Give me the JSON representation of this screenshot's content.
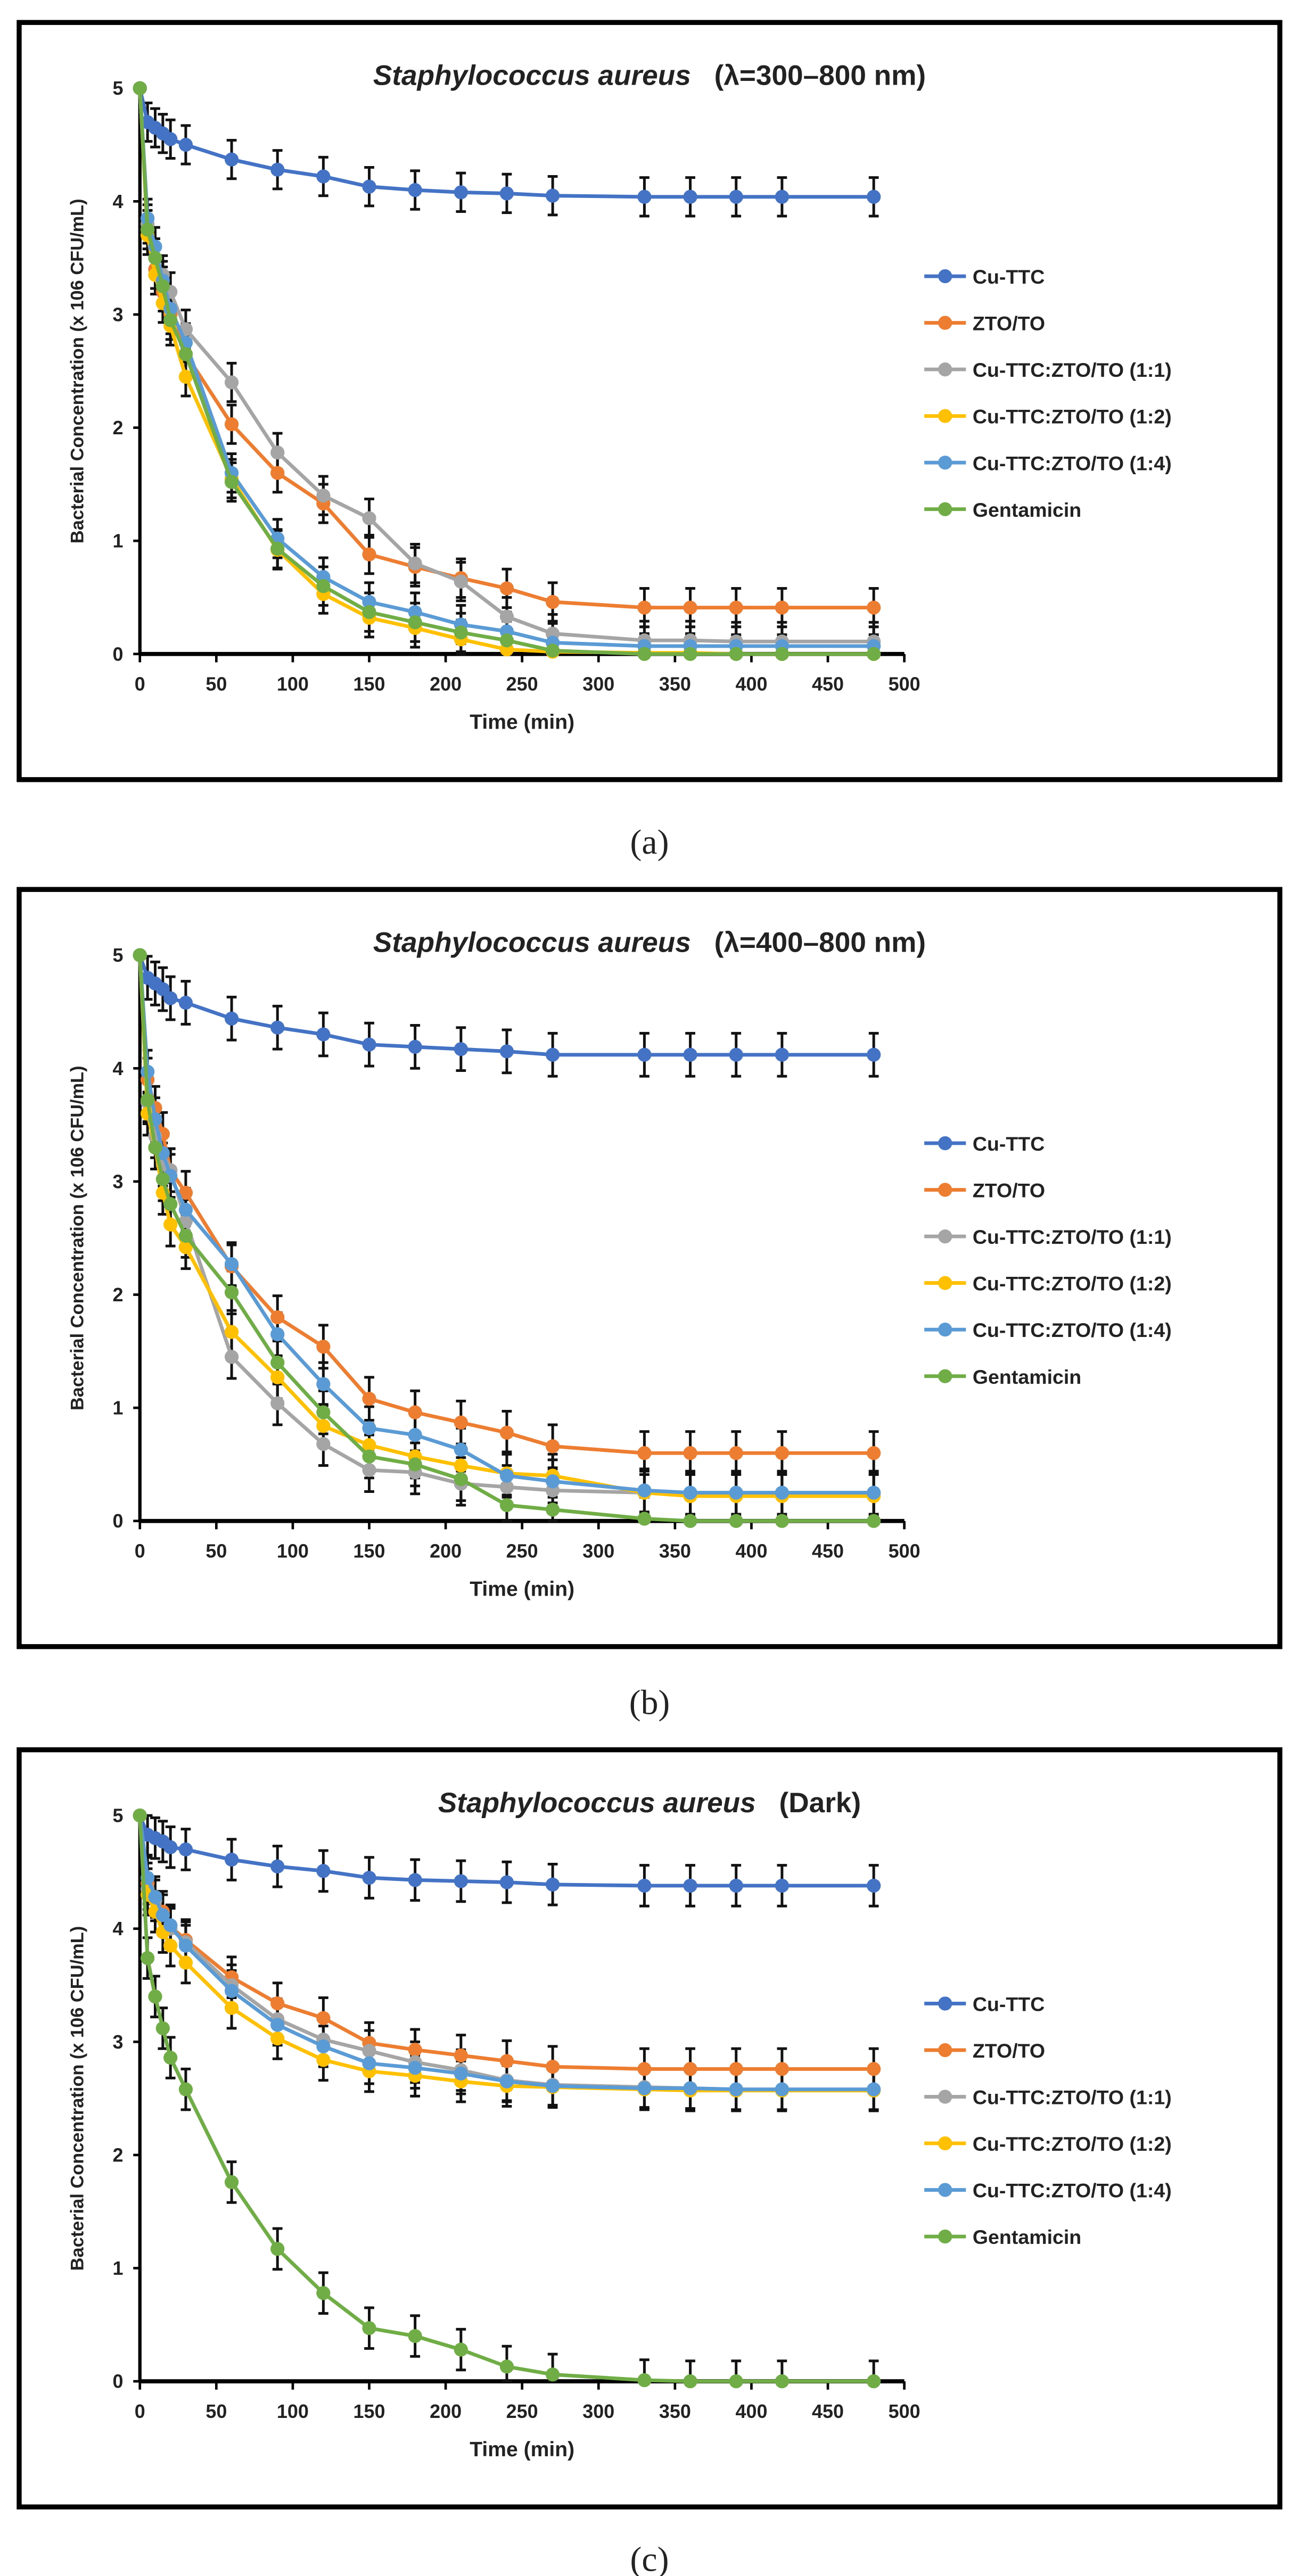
{
  "colors": {
    "Cu-TTC": "#4472C4",
    "ZTO/TO": "#ED7D31",
    "Cu-TTC:ZTO/TO (1:1)": "#A5A5A5",
    "Cu-TTC:ZTO/TO (1:2)": "#FFC000",
    "Cu-TTC:ZTO/TO (1:4)": "#5B9BD5",
    "Gentamicin": "#70AD47"
  },
  "chart_data": [
    {
      "type": "line",
      "caption": "(a)",
      "title_species": "Staphylococcus aureus",
      "title_condition": "(λ=300–800 nm)",
      "xlabel": "Time (min)",
      "ylabel": "Bacterial Concentration (x 106 CFU/mL)",
      "xlim": [
        0,
        500
      ],
      "ylim": [
        0,
        5
      ],
      "xticks": [
        "0",
        "50",
        "100",
        "150",
        "200",
        "250",
        "300",
        "350",
        "400",
        "450",
        "500"
      ],
      "yticks": [
        "0",
        "1",
        "2",
        "3",
        "4",
        "5"
      ],
      "legend_position": "right",
      "grid": false,
      "x": [
        0,
        5,
        10,
        15,
        20,
        30,
        60,
        90,
        120,
        150,
        180,
        210,
        240,
        270,
        330,
        360,
        390,
        420,
        480
      ],
      "error": 0.17,
      "series": [
        {
          "name": "Cu-TTC",
          "values": [
            5,
            4.7,
            4.65,
            4.6,
            4.55,
            4.5,
            4.37,
            4.28,
            4.22,
            4.13,
            4.1,
            4.08,
            4.07,
            4.05,
            4.04,
            4.04,
            4.04,
            4.04,
            4.04
          ]
        },
        {
          "name": "ZTO/TO",
          "values": [
            5,
            3.75,
            3.4,
            3.2,
            3.0,
            2.65,
            2.03,
            1.6,
            1.33,
            0.88,
            0.77,
            0.67,
            0.58,
            0.46,
            0.41,
            0.41,
            0.41,
            0.41,
            0.41
          ]
        },
        {
          "name": "Cu-TTC:ZTO/TO (1:1)",
          "values": [
            5,
            3.8,
            3.5,
            3.35,
            3.2,
            2.87,
            2.4,
            1.78,
            1.4,
            1.2,
            0.8,
            0.64,
            0.33,
            0.18,
            0.12,
            0.12,
            0.11,
            0.11,
            0.11
          ]
        },
        {
          "name": "Cu-TTC:ZTO/TO (1:2)",
          "values": [
            5,
            3.7,
            3.35,
            3.1,
            2.9,
            2.45,
            1.55,
            0.92,
            0.53,
            0.32,
            0.23,
            0.13,
            0.04,
            0.02,
            0.01,
            0.01,
            0,
            0,
            0
          ]
        },
        {
          "name": "Cu-TTC:ZTO/TO (1:4)",
          "values": [
            5,
            3.85,
            3.6,
            3.3,
            3.05,
            2.75,
            1.6,
            1.02,
            0.68,
            0.46,
            0.37,
            0.26,
            0.2,
            0.1,
            0.07,
            0.07,
            0.07,
            0.07,
            0.07
          ]
        },
        {
          "name": "Gentamicin",
          "values": [
            5,
            3.75,
            3.5,
            3.25,
            2.95,
            2.65,
            1.52,
            0.93,
            0.6,
            0.37,
            0.28,
            0.19,
            0.12,
            0.03,
            0,
            0,
            0,
            0,
            0
          ]
        }
      ]
    },
    {
      "type": "line",
      "caption": "(b)",
      "title_species": "Staphylococcus aureus",
      "title_condition": "(λ=400–800 nm)",
      "xlabel": "Time (min)",
      "ylabel": "Bacterial Concentration (x 106 CFU/mL)",
      "xlim": [
        0,
        500
      ],
      "ylim": [
        0,
        5
      ],
      "xticks": [
        "0",
        "50",
        "100",
        "150",
        "200",
        "250",
        "300",
        "350",
        "400",
        "450",
        "500"
      ],
      "yticks": [
        "0",
        "1",
        "2",
        "3",
        "4",
        "5"
      ],
      "legend_position": "right",
      "grid": false,
      "x": [
        0,
        5,
        10,
        15,
        20,
        30,
        60,
        90,
        120,
        150,
        180,
        210,
        240,
        270,
        330,
        360,
        390,
        420,
        480
      ],
      "error": 0.19,
      "series": [
        {
          "name": "Cu-TTC",
          "values": [
            5,
            4.8,
            4.75,
            4.7,
            4.62,
            4.58,
            4.44,
            4.36,
            4.3,
            4.21,
            4.19,
            4.17,
            4.15,
            4.12,
            4.12,
            4.12,
            4.12,
            4.12,
            4.12
          ]
        },
        {
          "name": "ZTO/TO",
          "values": [
            5,
            3.9,
            3.65,
            3.42,
            3.1,
            2.9,
            2.25,
            1.8,
            1.54,
            1.08,
            0.96,
            0.87,
            0.78,
            0.66,
            0.6,
            0.6,
            0.6,
            0.6,
            0.6
          ]
        },
        {
          "name": "Cu-TTC:ZTO/TO (1:1)",
          "values": [
            5,
            3.7,
            3.4,
            3.15,
            3.1,
            2.65,
            1.45,
            1.04,
            0.68,
            0.45,
            0.43,
            0.33,
            0.3,
            0.27,
            0.25,
            0.24,
            0.24,
            0.24,
            0.24
          ]
        },
        {
          "name": "Cu-TTC:ZTO/TO (1:2)",
          "values": [
            5,
            3.6,
            3.3,
            2.9,
            2.62,
            2.42,
            1.67,
            1.27,
            0.84,
            0.67,
            0.57,
            0.49,
            0.42,
            0.4,
            0.25,
            0.22,
            0.22,
            0.22,
            0.22
          ]
        },
        {
          "name": "Cu-TTC:ZTO/TO (1:4)",
          "values": [
            5,
            3.97,
            3.55,
            3.25,
            3.05,
            2.75,
            2.27,
            1.65,
            1.21,
            0.82,
            0.76,
            0.63,
            0.4,
            0.35,
            0.27,
            0.25,
            0.25,
            0.25,
            0.25
          ]
        },
        {
          "name": "Gentamicin",
          "values": [
            5,
            3.72,
            3.3,
            3.02,
            2.8,
            2.52,
            2.02,
            1.4,
            0.96,
            0.57,
            0.5,
            0.37,
            0.14,
            0.1,
            0.02,
            0,
            0,
            0,
            0
          ]
        }
      ]
    },
    {
      "type": "line",
      "caption": "(c)",
      "title_species": "Staphylococcus aureus",
      "title_condition": "(Dark)",
      "xlabel": "Time (min)",
      "ylabel": "Bacterial Concentration (x 106 CFU/mL)",
      "xlim": [
        0,
        500
      ],
      "ylim": [
        0,
        5
      ],
      "xticks": [
        "0",
        "50",
        "100",
        "150",
        "200",
        "250",
        "300",
        "350",
        "400",
        "450",
        "500"
      ],
      "yticks": [
        "0",
        "1",
        "2",
        "3",
        "4",
        "5"
      ],
      "legend_position": "right",
      "grid": false,
      "x": [
        0,
        5,
        10,
        15,
        20,
        30,
        60,
        90,
        120,
        150,
        180,
        210,
        240,
        270,
        330,
        360,
        390,
        420,
        480
      ],
      "error": 0.18,
      "series": [
        {
          "name": "Cu-TTC",
          "values": [
            5,
            4.83,
            4.8,
            4.77,
            4.72,
            4.7,
            4.61,
            4.55,
            4.51,
            4.45,
            4.43,
            4.42,
            4.41,
            4.39,
            4.38,
            4.38,
            4.38,
            4.38,
            4.38
          ]
        },
        {
          "name": "ZTO/TO",
          "values": [
            5,
            4.4,
            4.28,
            4.15,
            4.02,
            3.9,
            3.57,
            3.34,
            3.21,
            2.99,
            2.93,
            2.88,
            2.83,
            2.78,
            2.76,
            2.76,
            2.76,
            2.76,
            2.76
          ]
        },
        {
          "name": "Cu-TTC:ZTO/TO (1:1)",
          "values": [
            5,
            4.35,
            4.25,
            4.12,
            4.0,
            3.88,
            3.5,
            3.2,
            3.02,
            2.92,
            2.82,
            2.75,
            2.66,
            2.62,
            2.6,
            2.59,
            2.58,
            2.58,
            2.58
          ]
        },
        {
          "name": "Cu-TTC:ZTO/TO (1:2)",
          "values": [
            5,
            4.3,
            4.15,
            3.97,
            3.85,
            3.7,
            3.3,
            3.03,
            2.84,
            2.74,
            2.7,
            2.65,
            2.61,
            2.6,
            2.58,
            2.57,
            2.57,
            2.57,
            2.57
          ]
        },
        {
          "name": "Cu-TTC:ZTO/TO (1:4)",
          "values": [
            5,
            4.45,
            4.28,
            4.12,
            4.03,
            3.85,
            3.45,
            3.15,
            2.96,
            2.81,
            2.77,
            2.72,
            2.65,
            2.61,
            2.59,
            2.59,
            2.58,
            2.58,
            2.58
          ]
        },
        {
          "name": "Gentamicin",
          "values": [
            5,
            3.74,
            3.4,
            3.12,
            2.86,
            2.58,
            1.76,
            1.17,
            0.78,
            0.47,
            0.4,
            0.28,
            0.13,
            0.06,
            0.01,
            0,
            0,
            0,
            0
          ]
        }
      ]
    }
  ]
}
